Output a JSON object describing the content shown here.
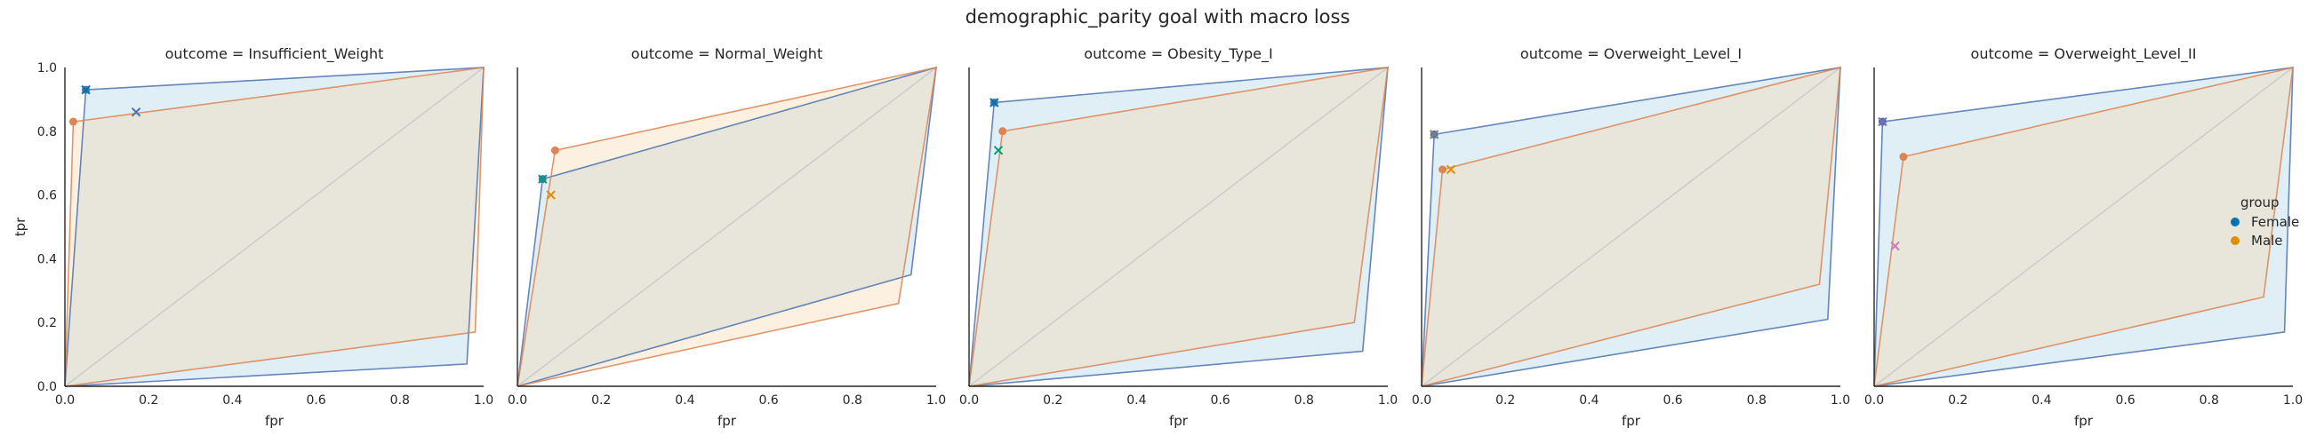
{
  "suptitle": "demographic_parity goal with macro loss",
  "axes": {
    "xlabel": "fpr",
    "ylabel": "tpr",
    "xlim": [
      0,
      1
    ],
    "ylim": [
      0,
      1
    ],
    "ticks": [
      "0.0",
      "0.2",
      "0.4",
      "0.6",
      "0.8",
      "1.0"
    ]
  },
  "legend": {
    "title": "group",
    "placement": "right",
    "items": [
      {
        "label": "Female",
        "color": "#0173b2"
      },
      {
        "label": "Male",
        "color": "#de8f05"
      }
    ]
  },
  "colors": {
    "female_line": "#4c72b0",
    "female_fill": "#a6cde3",
    "male_line": "#dd8452",
    "male_fill": "#f7d7a8",
    "diagonal": "#cccccc",
    "x_markers": [
      "#0173b2",
      "#de8f05",
      "#029e73",
      "#cc78bc"
    ]
  },
  "chart_data": [
    {
      "type": "area",
      "title": "outcome = Insufficient_Weight",
      "series": [
        {
          "name": "Female",
          "hull": [
            [
              0,
              0
            ],
            [
              0.05,
              0.93
            ],
            [
              1,
              1
            ],
            [
              0.96,
              0.07
            ],
            [
              0,
              0
            ]
          ],
          "point": [
            0.05,
            0.93
          ]
        },
        {
          "name": "Male",
          "hull": [
            [
              0,
              0
            ],
            [
              0.02,
              0.83
            ],
            [
              1,
              1
            ],
            [
              0.98,
              0.17
            ],
            [
              0,
              0
            ]
          ],
          "point": [
            0.02,
            0.83
          ]
        }
      ],
      "x_markers": [
        {
          "x": 0.05,
          "y": 0.93,
          "color": "#0173b2"
        },
        {
          "x": 0.17,
          "y": 0.86,
          "color": "#4c72b0"
        }
      ]
    },
    {
      "type": "area",
      "title": "outcome = Normal_Weight",
      "series": [
        {
          "name": "Female",
          "hull": [
            [
              0,
              0
            ],
            [
              0.06,
              0.65
            ],
            [
              1,
              1
            ],
            [
              0.94,
              0.35
            ],
            [
              0,
              0
            ]
          ],
          "point": [
            0.06,
            0.65
          ]
        },
        {
          "name": "Male",
          "hull": [
            [
              0,
              0
            ],
            [
              0.09,
              0.74
            ],
            [
              1,
              1
            ],
            [
              0.91,
              0.26
            ],
            [
              0,
              0
            ]
          ],
          "point": [
            0.09,
            0.74
          ]
        }
      ],
      "x_markers": [
        {
          "x": 0.06,
          "y": 0.65,
          "color": "#029e73"
        },
        {
          "x": 0.08,
          "y": 0.6,
          "color": "#de8f05"
        }
      ]
    },
    {
      "type": "area",
      "title": "outcome = Obesity_Type_I",
      "series": [
        {
          "name": "Female",
          "hull": [
            [
              0,
              0
            ],
            [
              0.06,
              0.89
            ],
            [
              1,
              1
            ],
            [
              0.94,
              0.11
            ],
            [
              0,
              0
            ]
          ],
          "point": [
            0.06,
            0.89
          ]
        },
        {
          "name": "Male",
          "hull": [
            [
              0,
              0
            ],
            [
              0.08,
              0.8
            ],
            [
              1,
              1
            ],
            [
              0.92,
              0.2
            ],
            [
              0,
              0
            ]
          ],
          "point": [
            0.08,
            0.8
          ]
        }
      ],
      "x_markers": [
        {
          "x": 0.06,
          "y": 0.89,
          "color": "#0173b2"
        },
        {
          "x": 0.07,
          "y": 0.74,
          "color": "#029e73"
        }
      ]
    },
    {
      "type": "area",
      "title": "outcome = Overweight_Level_I",
      "series": [
        {
          "name": "Female",
          "hull": [
            [
              0,
              0
            ],
            [
              0.03,
              0.79
            ],
            [
              1,
              1
            ],
            [
              0.97,
              0.21
            ],
            [
              0,
              0
            ]
          ],
          "point": [
            0.03,
            0.79
          ]
        },
        {
          "name": "Male",
          "hull": [
            [
              0,
              0
            ],
            [
              0.05,
              0.68
            ],
            [
              1,
              1
            ],
            [
              0.95,
              0.32
            ],
            [
              0,
              0
            ]
          ],
          "point": [
            0.05,
            0.68
          ]
        }
      ],
      "x_markers": [
        {
          "x": 0.03,
          "y": 0.79,
          "color": "#7f7f7f"
        },
        {
          "x": 0.07,
          "y": 0.68,
          "color": "#de8f05"
        }
      ]
    },
    {
      "type": "area",
      "title": "outcome = Overweight_Level_II",
      "series": [
        {
          "name": "Female",
          "hull": [
            [
              0,
              0
            ],
            [
              0.02,
              0.83
            ],
            [
              1,
              1
            ],
            [
              0.98,
              0.17
            ],
            [
              0,
              0
            ]
          ],
          "point": [
            0.02,
            0.83
          ]
        },
        {
          "name": "Male",
          "hull": [
            [
              0,
              0
            ],
            [
              0.07,
              0.72
            ],
            [
              1,
              1
            ],
            [
              0.93,
              0.28
            ],
            [
              0,
              0
            ]
          ],
          "point": [
            0.07,
            0.72
          ]
        }
      ],
      "x_markers": [
        {
          "x": 0.02,
          "y": 0.83,
          "color": "#7570b3"
        },
        {
          "x": 0.05,
          "y": 0.44,
          "color": "#cc78bc"
        }
      ]
    }
  ]
}
